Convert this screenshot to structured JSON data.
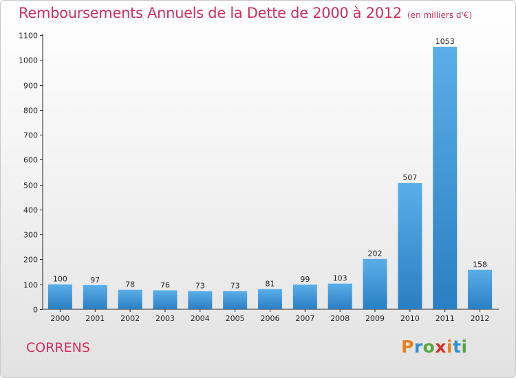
{
  "header": {
    "title": "Remboursements Annuels de la Dette de 2000 à 2012",
    "unit": "(en milliers d'€)"
  },
  "commune": "CORRENS",
  "logo": {
    "letters": [
      "P",
      "r",
      "o",
      "x",
      "i",
      "t",
      "i"
    ],
    "colors": [
      "#e8801a",
      "#2f8fd8",
      "#55a63c",
      "#d43030",
      "#e8801a",
      "#2f8fd8",
      "#55a63c"
    ]
  },
  "chart_data": {
    "type": "bar",
    "title": "Remboursements Annuels de la Dette de 2000 à 2012",
    "subtitle": "(en milliers d'€)",
    "categories": [
      "2000",
      "2001",
      "2002",
      "2003",
      "2004",
      "2005",
      "2006",
      "2007",
      "2008",
      "2009",
      "2010",
      "2011",
      "2012"
    ],
    "values": [
      100,
      97,
      78,
      76,
      73,
      73,
      81,
      99,
      103,
      202,
      507,
      1053,
      158
    ],
    "ylim": [
      0,
      1100
    ],
    "yticks": [
      0,
      100,
      200,
      300,
      400,
      500,
      600,
      700,
      800,
      900,
      1000,
      1100
    ],
    "grid": false,
    "bar_color_top": "#5aaee8",
    "bar_color_bottom": "#2a7fc4",
    "axis_color": "#222222"
  }
}
